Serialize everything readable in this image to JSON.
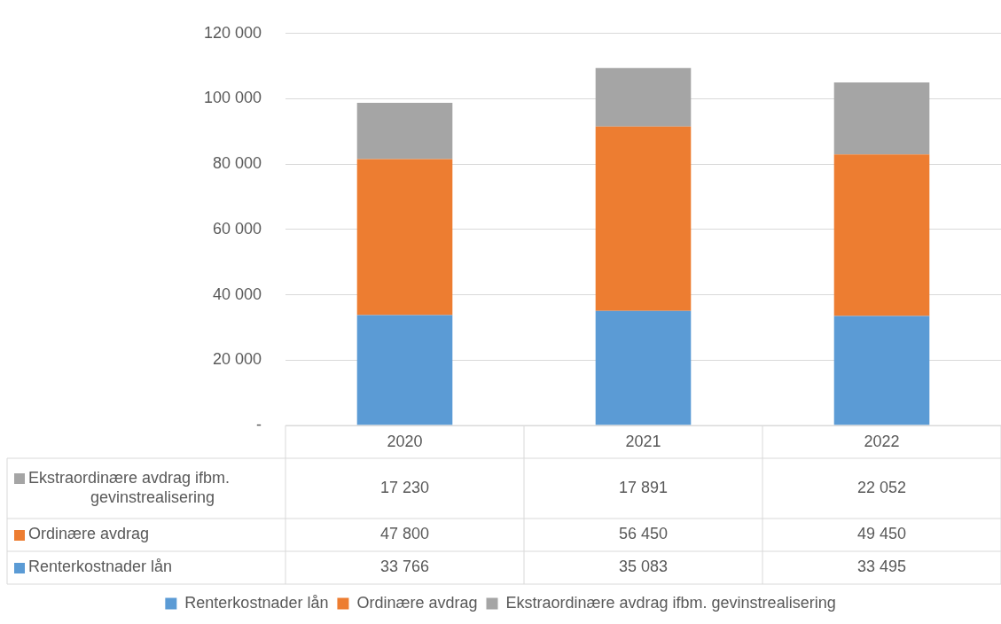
{
  "chart_data": {
    "type": "bar",
    "stacked": true,
    "categories": [
      "2020",
      "2021",
      "2022"
    ],
    "series": [
      {
        "name": "Renterkostnader lån",
        "color": "#5b9bd5",
        "values": [
          33766,
          35083,
          33495
        ],
        "value_labels": [
          "33 766",
          "35 083",
          "33 495"
        ]
      },
      {
        "name": "Ordinære avdrag",
        "color": "#ed7d31",
        "values": [
          47800,
          56450,
          49450
        ],
        "value_labels": [
          "47 800",
          "56 450",
          "49 450"
        ]
      },
      {
        "name": "Ekstraordinære avdrag ifbm. gevinstrealisering",
        "color": "#a5a5a5",
        "values": [
          17230,
          17891,
          22052
        ],
        "value_labels": [
          "17 230",
          "17 891",
          "22 052"
        ]
      }
    ],
    "ylim": [
      0,
      120000
    ],
    "yticks": [
      {
        "value": 0,
        "label": "-"
      },
      {
        "value": 20000,
        "label": "20 000"
      },
      {
        "value": 40000,
        "label": "40 000"
      },
      {
        "value": 60000,
        "label": "60 000"
      },
      {
        "value": 80000,
        "label": "80 000"
      },
      {
        "value": 100000,
        "label": "100 000"
      },
      {
        "value": 120000,
        "label": "120 000"
      }
    ],
    "grid": "y",
    "legend": "bottom"
  }
}
